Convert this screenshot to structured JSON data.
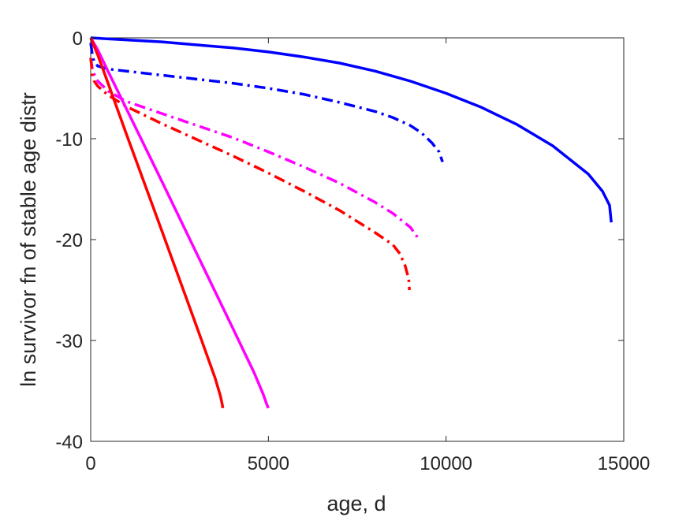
{
  "chart_data": {
    "type": "line",
    "xlabel": "age, d",
    "ylabel": "ln survivor fn of stable age distr",
    "xlim": [
      0,
      15000
    ],
    "ylim": [
      -40,
      0
    ],
    "xticks": [
      0,
      5000,
      10000,
      15000
    ],
    "yticks": [
      0,
      -10,
      -20,
      -30,
      -40
    ],
    "grid": false,
    "series": [
      {
        "color": "#0000ff",
        "style": "solid",
        "x": [
          0,
          1000,
          2000,
          3000,
          4000,
          5000,
          6000,
          7000,
          8000,
          9000,
          10000,
          11000,
          12000,
          13000,
          14000,
          14400,
          14600,
          14650
        ],
        "y": [
          0,
          -0.2,
          -0.4,
          -0.7,
          -1.0,
          -1.4,
          -1.9,
          -2.5,
          -3.3,
          -4.3,
          -5.5,
          -6.9,
          -8.6,
          -10.7,
          -13.5,
          -15.2,
          -16.6,
          -18.3
        ]
      },
      {
        "color": "#0000ff",
        "style": "dashdot",
        "x": [
          0,
          50,
          100,
          200,
          500,
          1000,
          2000,
          3000,
          4000,
          5000,
          6000,
          7000,
          8000,
          8500,
          9000,
          9300,
          9600,
          9800,
          9900
        ],
        "y": [
          -0.5,
          -1.8,
          -2.4,
          -2.8,
          -3.1,
          -3.3,
          -3.7,
          -4.1,
          -4.5,
          -5.0,
          -5.6,
          -6.4,
          -7.3,
          -7.9,
          -8.7,
          -9.4,
          -10.4,
          -11.3,
          -12.3
        ]
      },
      {
        "color": "#ff00ff",
        "style": "dashdot",
        "x": [
          0,
          50,
          100,
          200,
          500,
          1000,
          2000,
          3000,
          4000,
          5000,
          6000,
          7000,
          8000,
          8500,
          9000,
          9200
        ],
        "y": [
          -2.0,
          -3.2,
          -3.6,
          -4.3,
          -5.3,
          -6.3,
          -7.5,
          -8.7,
          -9.9,
          -11.3,
          -12.8,
          -14.4,
          -16.3,
          -17.4,
          -18.8,
          -19.8
        ]
      },
      {
        "color": "#ff0000",
        "style": "dashdot",
        "x": [
          0,
          50,
          100,
          200,
          500,
          1000,
          2000,
          3000,
          4000,
          5000,
          6000,
          7000,
          8000,
          8500,
          8700,
          8850,
          8950,
          8970
        ],
        "y": [
          -2.0,
          -3.8,
          -4.3,
          -4.8,
          -5.7,
          -6.8,
          -8.5,
          -10.1,
          -11.7,
          -13.4,
          -15.2,
          -17.1,
          -19.3,
          -20.5,
          -21.4,
          -22.6,
          -23.9,
          -25.0
        ]
      },
      {
        "color": "#ff00ff",
        "style": "solid",
        "x": [
          0,
          200,
          500,
          1000,
          2000,
          3000,
          4000,
          4600,
          4850,
          4950,
          5000
        ],
        "y": [
          0,
          -1.2,
          -3.4,
          -7.0,
          -14.2,
          -21.5,
          -28.8,
          -33.2,
          -35.3,
          -36.3,
          -36.7
        ]
      },
      {
        "color": "#ff0000",
        "style": "solid",
        "x": [
          0,
          200,
          500,
          1000,
          2000,
          3000,
          3500,
          3650,
          3700,
          3720
        ],
        "y": [
          0,
          -1.7,
          -4.6,
          -9.5,
          -19.1,
          -28.8,
          -33.7,
          -35.5,
          -36.3,
          -36.7
        ]
      }
    ]
  }
}
